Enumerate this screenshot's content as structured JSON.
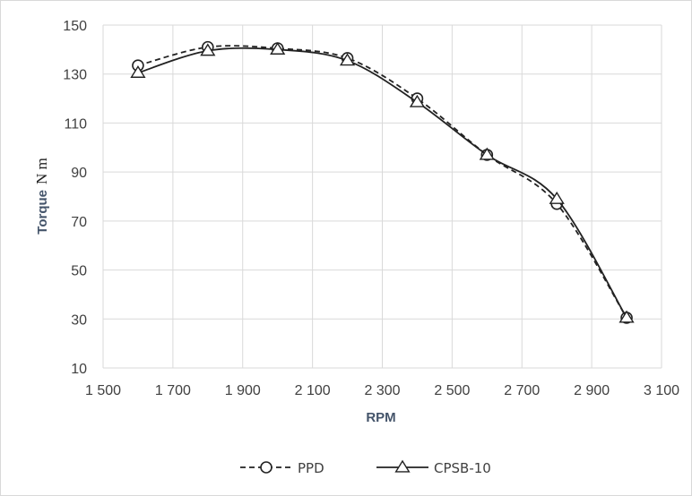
{
  "chart_data": {
    "type": "line",
    "xlabel": "RPM",
    "ylabel_bold": "Torque",
    "ylabel_unit": "N m",
    "xlim": [
      1500,
      3100
    ],
    "ylim": [
      10,
      150
    ],
    "x_ticks": [
      1500,
      1700,
      1900,
      2100,
      2300,
      2500,
      2700,
      2900,
      3100
    ],
    "x_tick_labels": [
      "1 500",
      "1 700",
      "1 900",
      "2 100",
      "2 300",
      "2 500",
      "2 700",
      "2 900",
      "3 100"
    ],
    "y_ticks": [
      10,
      30,
      50,
      70,
      90,
      110,
      130,
      150
    ],
    "y_tick_labels": [
      "10",
      "30",
      "50",
      "70",
      "90",
      "110",
      "130",
      "150"
    ],
    "grid": true,
    "legend_position": "bottom",
    "series": [
      {
        "name": "PPD",
        "marker": "circle",
        "line_style": "dashed",
        "color": "#222222",
        "x": [
          1600,
          1800,
          2000,
          2200,
          2400,
          2600,
          2800,
          3000
        ],
        "y": [
          133.5,
          141,
          140.5,
          136.5,
          120,
          97,
          77,
          30.5
        ]
      },
      {
        "name": "CPSB-10",
        "marker": "triangle",
        "line_style": "solid",
        "color": "#222222",
        "x": [
          1600,
          1800,
          2000,
          2200,
          2400,
          2600,
          2800,
          3000
        ],
        "y": [
          130.5,
          139.5,
          140,
          135.5,
          118.5,
          97,
          79,
          30.5
        ]
      }
    ]
  }
}
